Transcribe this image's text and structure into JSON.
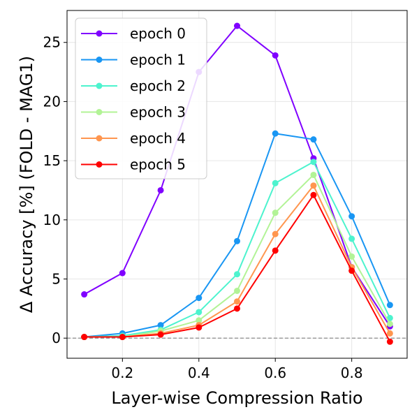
{
  "chart_data": {
    "type": "line",
    "title": "",
    "xlabel": "Layer-wise Compression Ratio",
    "ylabel": "Δ Accuracy [%] (FOLD - MAG1)",
    "xlim": [
      0.055,
      0.945
    ],
    "ylim": [
      -1.7,
      27.7
    ],
    "xticks": [
      0.2,
      0.4,
      0.6,
      0.8
    ],
    "xtick_labels": [
      "0.2",
      "0.4",
      "0.6",
      "0.8"
    ],
    "yticks": [
      0,
      5,
      10,
      15,
      20,
      25
    ],
    "ytick_labels": [
      "0",
      "5",
      "10",
      "15",
      "20",
      "25"
    ],
    "grid": true,
    "reference_line": 0,
    "legend_position": "upper-left",
    "x": [
      0.1,
      0.2,
      0.3,
      0.4,
      0.5,
      0.6,
      0.7,
      0.8,
      0.9
    ],
    "series": [
      {
        "name": "epoch 0",
        "color": "#8000ff",
        "values": [
          3.7,
          5.5,
          12.5,
          22.5,
          26.4,
          23.9,
          15.2,
          6.0,
          1.0
        ]
      },
      {
        "name": "epoch 1",
        "color": "#1996f3",
        "values": [
          0.1,
          0.4,
          1.1,
          3.4,
          8.2,
          17.3,
          16.8,
          10.3,
          2.8
        ]
      },
      {
        "name": "epoch 2",
        "color": "#4df3ce",
        "values": [
          0.1,
          0.2,
          0.7,
          2.2,
          5.4,
          13.1,
          14.9,
          8.4,
          1.7
        ]
      },
      {
        "name": "epoch 3",
        "color": "#b2f396",
        "values": [
          0.1,
          0.1,
          0.6,
          1.5,
          4.0,
          10.6,
          13.8,
          6.9,
          1.2
        ]
      },
      {
        "name": "epoch 4",
        "color": "#ff964f",
        "values": [
          0.1,
          0.1,
          0.4,
          1.1,
          3.1,
          8.8,
          12.9,
          6.0,
          0.4
        ]
      },
      {
        "name": "epoch 5",
        "color": "#ff0000",
        "values": [
          0.1,
          0.1,
          0.3,
          0.9,
          2.5,
          7.4,
          12.1,
          5.7,
          -0.3
        ]
      }
    ]
  }
}
